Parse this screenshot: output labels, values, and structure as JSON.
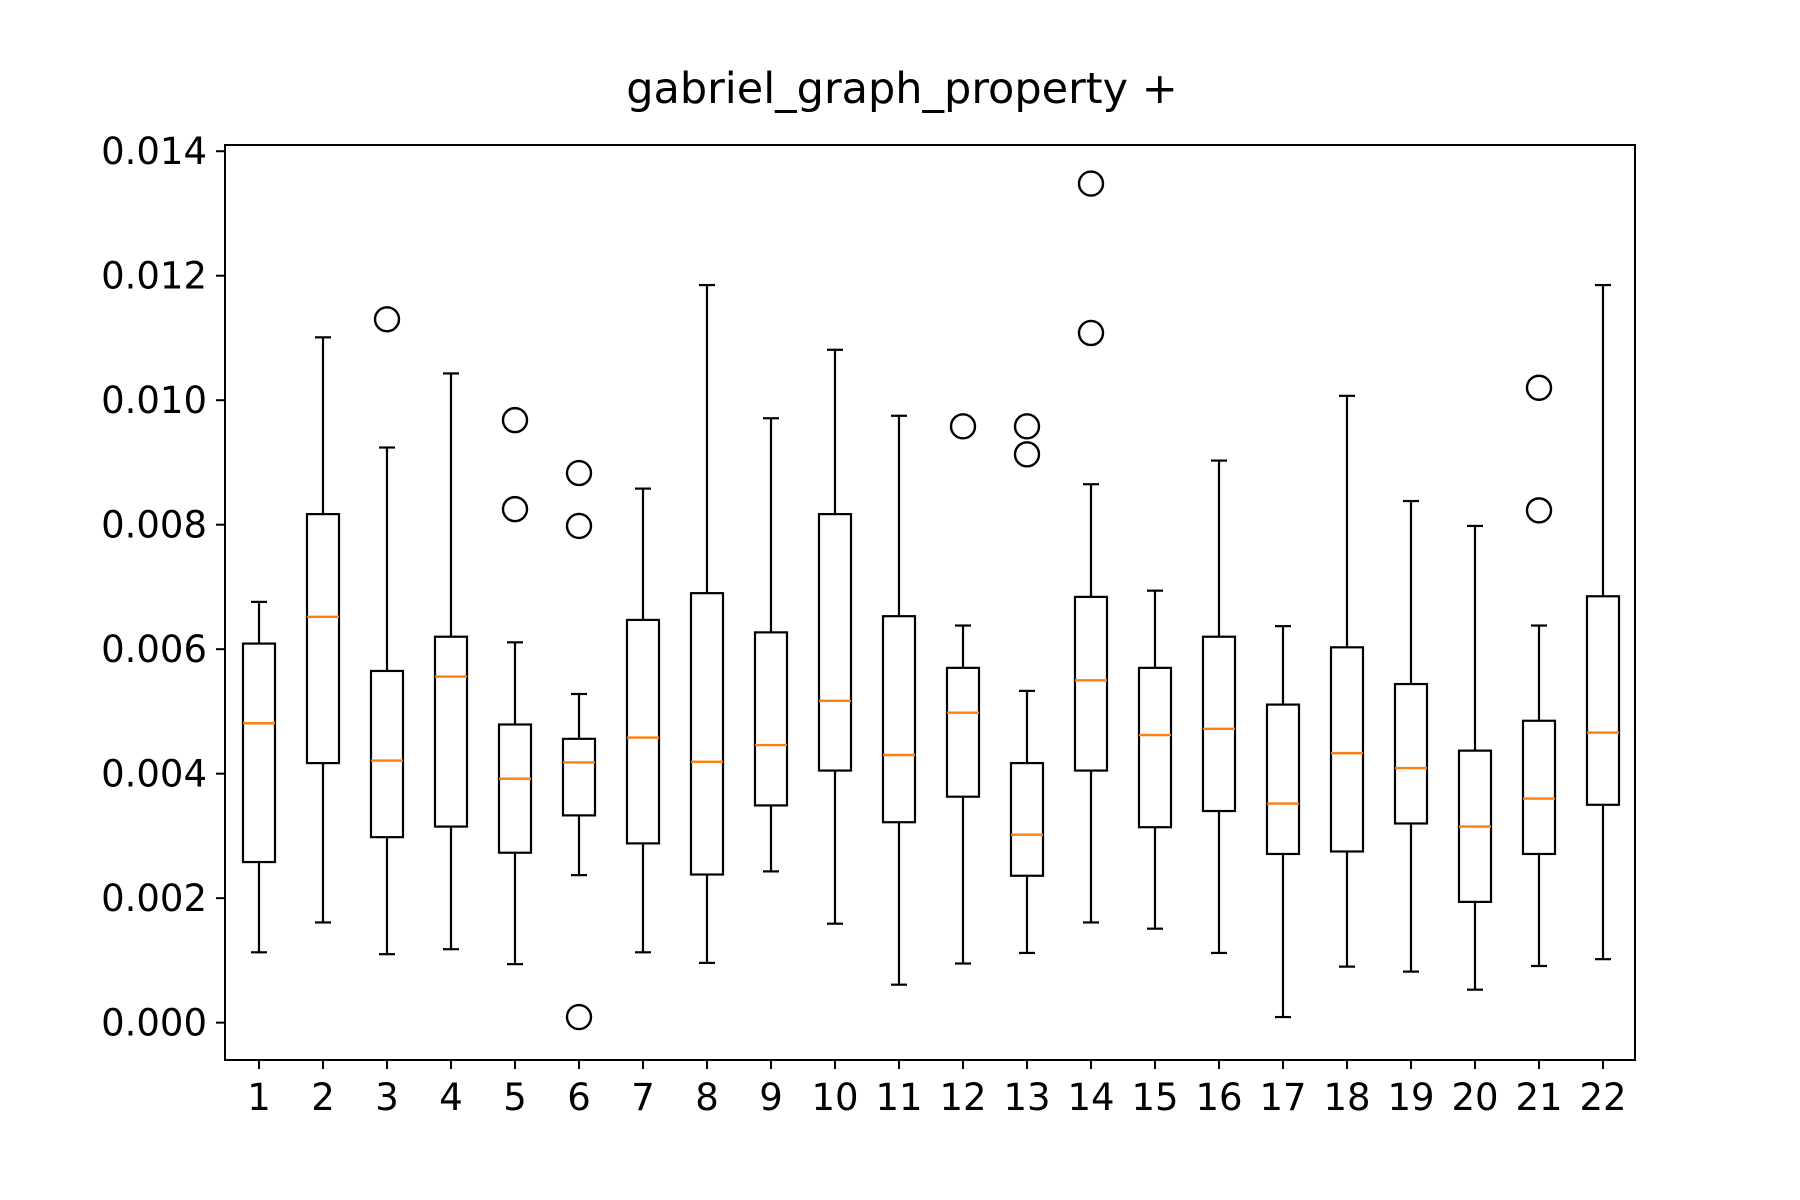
{
  "chart_data": {
    "type": "box",
    "title": "gabriel_graph_property +",
    "xlabel": "",
    "ylabel": "",
    "ylim": [
      -0.0006,
      0.0141
    ],
    "yticks": [
      0.0,
      0.002,
      0.004,
      0.006,
      0.008,
      0.01,
      0.012,
      0.014
    ],
    "ytick_labels": [
      "0.000",
      "0.002",
      "0.004",
      "0.006",
      "0.008",
      "0.010",
      "0.012",
      "0.014"
    ],
    "categories": [
      "1",
      "2",
      "3",
      "4",
      "5",
      "6",
      "7",
      "8",
      "9",
      "10",
      "11",
      "12",
      "13",
      "14",
      "15",
      "16",
      "17",
      "18",
      "19",
      "20",
      "21",
      "22"
    ],
    "grid": false,
    "boxes": [
      {
        "whislo": 0.00113,
        "q1": 0.00258,
        "med": 0.00481,
        "q3": 0.00609,
        "whishi": 0.00676,
        "fliers": []
      },
      {
        "whislo": 0.00161,
        "q1": 0.00417,
        "med": 0.00652,
        "q3": 0.00817,
        "whishi": 0.01101,
        "fliers": []
      },
      {
        "whislo": 0.0011,
        "q1": 0.00298,
        "med": 0.00421,
        "q3": 0.00565,
        "whishi": 0.00924,
        "fliers": [
          0.0113
        ]
      },
      {
        "whislo": 0.00118,
        "q1": 0.00315,
        "med": 0.00556,
        "q3": 0.0062,
        "whishi": 0.01043,
        "fliers": []
      },
      {
        "whislo": 0.00094,
        "q1": 0.00273,
        "med": 0.00392,
        "q3": 0.00479,
        "whishi": 0.00611,
        "fliers": [
          0.00825,
          0.00968
        ]
      },
      {
        "whislo": 0.00237,
        "q1": 0.00333,
        "med": 0.00418,
        "q3": 0.00456,
        "whishi": 0.00528,
        "fliers": [
          9e-05,
          0.00798,
          0.00883
        ]
      },
      {
        "whislo": 0.00113,
        "q1": 0.00288,
        "med": 0.00458,
        "q3": 0.00647,
        "whishi": 0.00858,
        "fliers": []
      },
      {
        "whislo": 0.00096,
        "q1": 0.00238,
        "med": 0.00419,
        "q3": 0.0069,
        "whishi": 0.01185,
        "fliers": []
      },
      {
        "whislo": 0.00243,
        "q1": 0.00349,
        "med": 0.00446,
        "q3": 0.00627,
        "whishi": 0.00971,
        "fliers": []
      },
      {
        "whislo": 0.00159,
        "q1": 0.00405,
        "med": 0.00517,
        "q3": 0.00817,
        "whishi": 0.01081,
        "fliers": []
      },
      {
        "whislo": 0.00061,
        "q1": 0.00322,
        "med": 0.0043,
        "q3": 0.00653,
        "whishi": 0.00975,
        "fliers": []
      },
      {
        "whislo": 0.00095,
        "q1": 0.00363,
        "med": 0.00498,
        "q3": 0.0057,
        "whishi": 0.00638,
        "fliers": [
          0.00958
        ]
      },
      {
        "whislo": 0.00112,
        "q1": 0.00236,
        "med": 0.00302,
        "q3": 0.00417,
        "whishi": 0.00533,
        "fliers": [
          0.00913,
          0.00958
        ]
      },
      {
        "whislo": 0.00161,
        "q1": 0.00405,
        "med": 0.0055,
        "q3": 0.00684,
        "whishi": 0.00865,
        "fliers": [
          0.01108,
          0.01348
        ]
      },
      {
        "whislo": 0.00151,
        "q1": 0.00314,
        "med": 0.00462,
        "q3": 0.0057,
        "whishi": 0.00694,
        "fliers": []
      },
      {
        "whislo": 0.00112,
        "q1": 0.0034,
        "med": 0.00472,
        "q3": 0.0062,
        "whishi": 0.00903,
        "fliers": []
      },
      {
        "whislo": 9e-05,
        "q1": 0.00271,
        "med": 0.00352,
        "q3": 0.00511,
        "whishi": 0.00637,
        "fliers": []
      },
      {
        "whislo": 0.0009,
        "q1": 0.00275,
        "med": 0.00433,
        "q3": 0.00603,
        "whishi": 0.01007,
        "fliers": []
      },
      {
        "whislo": 0.00082,
        "q1": 0.0032,
        "med": 0.00409,
        "q3": 0.00544,
        "whishi": 0.00838,
        "fliers": []
      },
      {
        "whislo": 0.00053,
        "q1": 0.00194,
        "med": 0.00315,
        "q3": 0.00437,
        "whishi": 0.00798,
        "fliers": []
      },
      {
        "whislo": 0.00091,
        "q1": 0.00271,
        "med": 0.0036,
        "q3": 0.00485,
        "whishi": 0.00638,
        "fliers": [
          0.00823,
          0.0102
        ]
      },
      {
        "whislo": 0.00102,
        "q1": 0.0035,
        "med": 0.00466,
        "q3": 0.00685,
        "whishi": 0.01185,
        "fliers": []
      }
    ]
  },
  "colors": {
    "box_edge": "#000000",
    "median": "#ff7f0e",
    "background": "#ffffff"
  }
}
